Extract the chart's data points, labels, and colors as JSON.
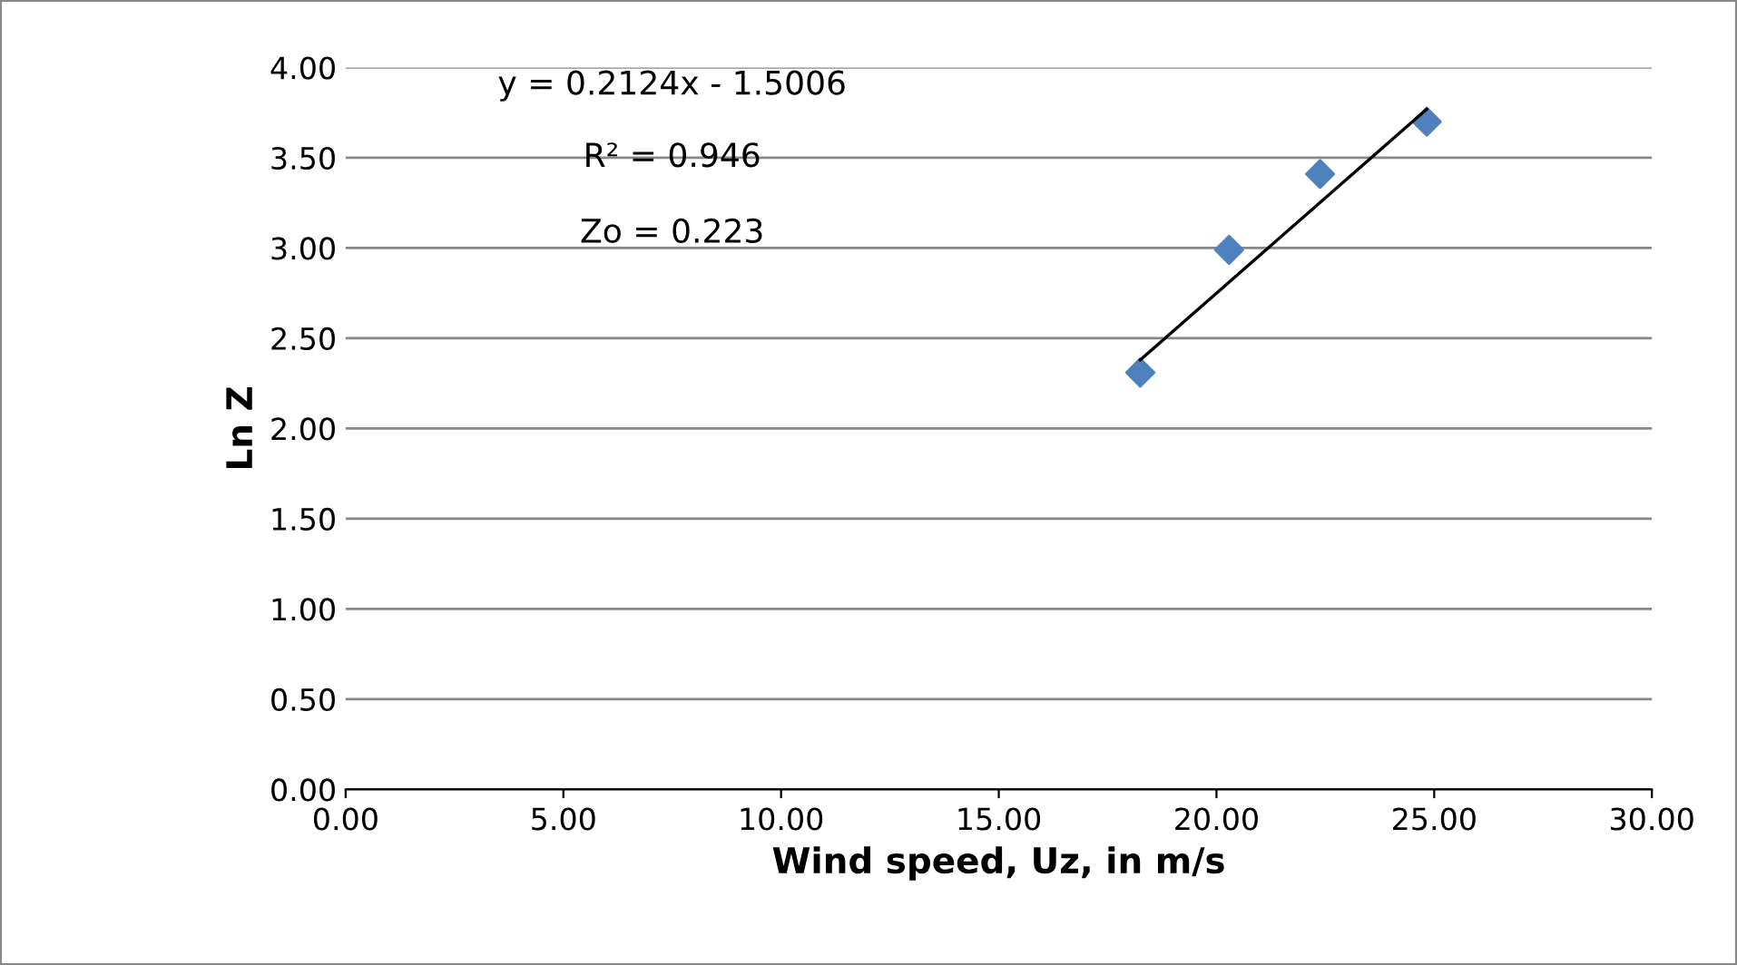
{
  "chart_data": {
    "type": "scatter",
    "xlabel": "Wind speed, Uz, in m/s",
    "ylabel": "Ln Z",
    "annotations": [
      "y = 0.2124x - 1.5006",
      "R² = 0.946",
      "Zo = 0.223"
    ],
    "series": [
      {
        "x": [
          18.25,
          20.29,
          22.38,
          24.83
        ],
        "values": [
          2.31,
          2.99,
          3.41,
          3.7
        ],
        "color": "#4f81bd",
        "marker": "diamond"
      },
      {
        "type": "line",
        "x": [
          18.25,
          24.83
        ],
        "values": [
          2.38,
          3.77
        ],
        "color": "#000000",
        "marker": "none",
        "line_style": "solid"
      }
    ],
    "xlim": [
      0,
      30
    ],
    "xticks": [
      {
        "value": 0,
        "label": "0.00"
      },
      {
        "value": 5,
        "label": "5.00"
      },
      {
        "value": 10,
        "label": "10.00"
      },
      {
        "value": 15,
        "label": "15.00"
      },
      {
        "value": 20,
        "label": "20.00"
      },
      {
        "value": 25,
        "label": "25.00"
      },
      {
        "value": 30,
        "label": "30.00"
      }
    ],
    "ylim": [
      0,
      4
    ],
    "yticks": [
      {
        "value": 0,
        "label": "0.00"
      },
      {
        "value": 0.5,
        "label": "0.50"
      },
      {
        "value": 1,
        "label": "1.00"
      },
      {
        "value": 1.5,
        "label": "1.50"
      },
      {
        "value": 2,
        "label": "2.00"
      },
      {
        "value": 2.5,
        "label": "2.50"
      },
      {
        "value": 3,
        "label": "3.00"
      },
      {
        "value": 3.5,
        "label": "3.50"
      },
      {
        "value": 4,
        "label": "4.00"
      }
    ],
    "grid": "y",
    "legend": false
  }
}
